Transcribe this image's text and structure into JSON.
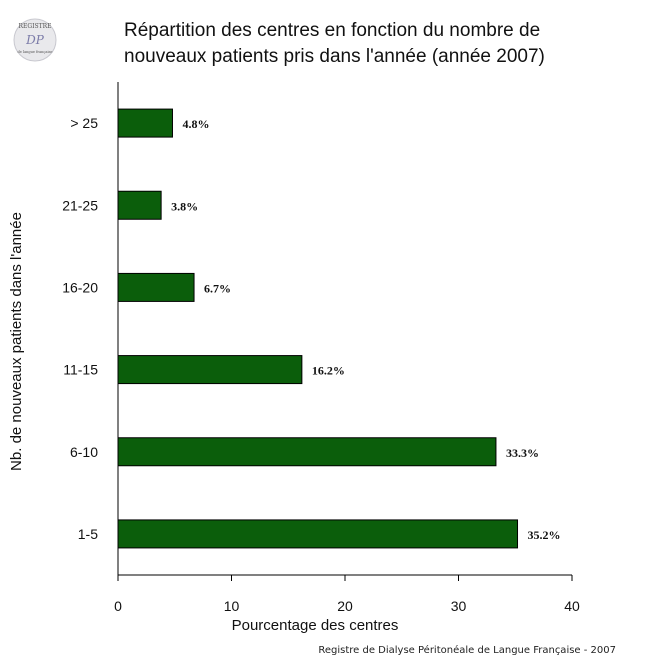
{
  "logo": {
    "text_top": "REGISTRE",
    "text_mid": "DP",
    "text_small": "de langue française"
  },
  "chart_data": {
    "type": "bar",
    "orientation": "horizontal",
    "title_lines": [
      "Répartition des centres en fonction du nombre de",
      "nouveaux patients pris dans l'année (année 2007)"
    ],
    "xlabel": "Pourcentage des centres",
    "ylabel": "Nb. de nouveaux patients dans l'année",
    "categories": [
      "1-5",
      "6-10",
      "11-15",
      "16-20",
      "21-25",
      "> 25"
    ],
    "values": [
      35.2,
      33.3,
      16.2,
      6.7,
      3.8,
      4.8
    ],
    "data_labels": [
      "35.2%",
      "33.3%",
      "16.2%",
      "6.7%",
      "3.8%",
      "4.8%"
    ],
    "xlim": [
      0,
      40
    ],
    "xticks": [
      0,
      10,
      20,
      30,
      40
    ],
    "grid": false,
    "bar_color": "#0b5e0b"
  },
  "footer": "Registre de Dialyse Péritonéale de Langue Française - 2007"
}
